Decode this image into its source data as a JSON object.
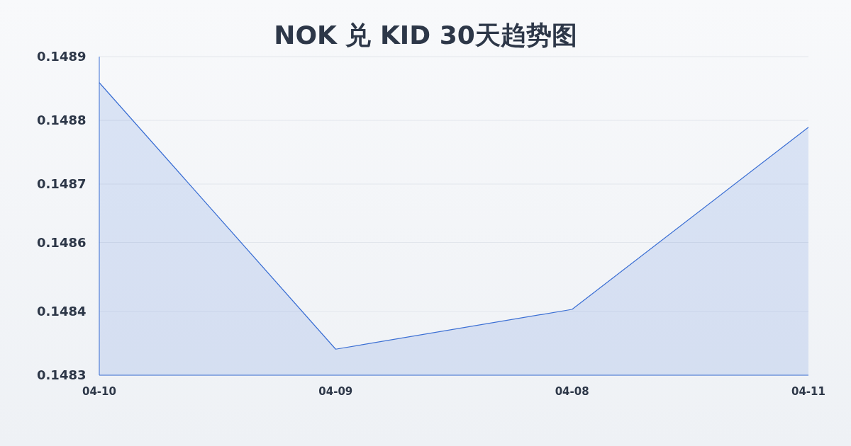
{
  "chart_data": {
    "type": "area",
    "title": "NOK 兑 KID 30天趋势图",
    "categories": [
      "04-10",
      "04-09",
      "04-08",
      "04-11"
    ],
    "values": [
      0.148851,
      0.148349,
      0.148424,
      0.148767
    ],
    "color": "#3b6fd4",
    "ylim": [
      0.1483,
      0.1489
    ],
    "yticks": [
      {
        "value": 0.1483,
        "label": "0.1483"
      },
      {
        "value": 0.14842,
        "label": "0.1484"
      },
      {
        "value": 0.14855,
        "label": "0.1486"
      },
      {
        "value": 0.14866,
        "label": "0.1487"
      },
      {
        "value": 0.14878,
        "label": "0.1488"
      },
      {
        "value": 0.1489,
        "label": "0.1489"
      }
    ],
    "grid": "y"
  }
}
